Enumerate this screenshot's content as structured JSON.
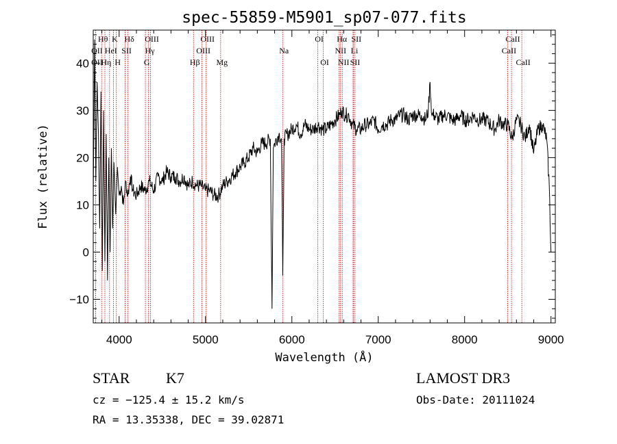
{
  "chart_data": {
    "type": "line",
    "title": "spec-55859-M5901_sp07-077.fits",
    "xlabel": "Wavelength (Å)",
    "ylabel": "Flux (relative)",
    "xlim": [
      3700,
      9050
    ],
    "ylim": [
      -15,
      47
    ],
    "xticks": [
      4000,
      5000,
      6000,
      7000,
      8000,
      9000
    ],
    "yticks": [
      -10,
      0,
      10,
      20,
      30,
      40
    ],
    "series": [
      {
        "name": "spectrum",
        "x": [
          3700,
          3715,
          3730,
          3745,
          3760,
          3775,
          3790,
          3805,
          3820,
          3835,
          3850,
          3865,
          3880,
          3895,
          3910,
          3925,
          3940,
          3960,
          3980,
          4000,
          4025,
          4050,
          4075,
          4100,
          4130,
          4160,
          4200,
          4250,
          4300,
          4350,
          4400,
          4450,
          4500,
          4550,
          4600,
          4650,
          4700,
          4750,
          4800,
          4850,
          4900,
          4950,
          5000,
          5050,
          5100,
          5150,
          5200,
          5250,
          5300,
          5350,
          5400,
          5450,
          5500,
          5550,
          5600,
          5650,
          5700,
          5750,
          5770,
          5785,
          5800,
          5850,
          5880,
          5895,
          5910,
          5950,
          6000,
          6050,
          6100,
          6150,
          6200,
          6250,
          6300,
          6350,
          6400,
          6450,
          6500,
          6550,
          6580,
          6620,
          6660,
          6700,
          6750,
          6800,
          6850,
          6900,
          6950,
          7000,
          7050,
          7100,
          7150,
          7200,
          7250,
          7300,
          7350,
          7400,
          7450,
          7500,
          7550,
          7580,
          7600,
          7620,
          7650,
          7700,
          7750,
          7800,
          7850,
          7900,
          7950,
          8000,
          8050,
          8100,
          8150,
          8200,
          8250,
          8300,
          8350,
          8400,
          8450,
          8500,
          8550,
          8600,
          8650,
          8700,
          8750,
          8800,
          8850,
          8900,
          8950,
          8980,
          9000
        ],
        "y": [
          10,
          45,
          15,
          36,
          25,
          5,
          34,
          -4,
          30,
          -2,
          25,
          -6,
          20,
          0,
          22,
          5,
          19,
          8,
          18,
          12,
          14,
          10,
          15,
          12,
          16,
          13,
          12,
          14,
          13,
          15,
          13,
          16,
          15,
          17,
          16,
          16,
          15,
          16,
          14,
          15,
          14,
          14,
          13,
          13,
          12,
          12,
          14,
          15,
          16,
          17,
          18,
          19,
          20,
          22,
          21,
          23,
          23,
          24,
          -12,
          22,
          23,
          25,
          24,
          -5,
          24,
          25,
          26,
          27,
          25,
          27,
          26,
          26,
          27,
          26,
          26,
          27,
          28,
          29,
          30,
          29,
          29,
          27,
          26,
          26,
          27,
          27,
          28,
          26,
          27,
          27,
          28,
          28,
          29,
          29,
          28,
          29,
          29,
          29,
          28,
          30,
          36,
          29,
          29,
          28,
          29,
          29,
          28,
          28,
          29,
          28,
          28,
          29,
          28,
          28,
          28,
          27,
          26,
          28,
          27,
          27,
          24,
          28,
          27,
          24,
          27,
          21,
          26,
          27,
          24,
          14,
          0
        ]
      }
    ],
    "emission_lines": [
      {
        "label": "Hθ",
        "x": 3797,
        "row": 1
      },
      {
        "label": "K",
        "x": 3934,
        "row": 1
      },
      {
        "label": "Hδ",
        "x": 4102,
        "row": 1
      },
      {
        "label": "OIII",
        "x": 4363,
        "row": 1
      },
      {
        "label": "OIII",
        "x": 5007,
        "row": 1
      },
      {
        "label": "OI",
        "x": 6300,
        "row": 1
      },
      {
        "label": "Hα",
        "x": 6563,
        "row": 1
      },
      {
        "label": "SII",
        "x": 6731,
        "row": 1
      },
      {
        "label": "CaII",
        "x": 8542,
        "row": 1
      },
      {
        "label": "OII",
        "x": 3727,
        "row": 2
      },
      {
        "label": "HeI",
        "x": 3889,
        "row": 2
      },
      {
        "label": "SII",
        "x": 4070,
        "row": 2
      },
      {
        "label": "Hγ",
        "x": 4340,
        "row": 2
      },
      {
        "label": "OIII",
        "x": 4959,
        "row": 2
      },
      {
        "label": "Na",
        "x": 5893,
        "row": 2
      },
      {
        "label": "NII",
        "x": 6548,
        "row": 2
      },
      {
        "label": "Li",
        "x": 6708,
        "row": 2
      },
      {
        "label": "CaII",
        "x": 8498,
        "row": 2
      },
      {
        "label": "OII",
        "x": 3727,
        "row": 3
      },
      {
        "label": "Hη",
        "x": 3835,
        "row": 3
      },
      {
        "label": "H",
        "x": 3968,
        "row": 3
      },
      {
        "label": "G",
        "x": 4304,
        "row": 3
      },
      {
        "label": "Hβ",
        "x": 4861,
        "row": 3
      },
      {
        "label": "Mg",
        "x": 5175,
        "row": 3
      },
      {
        "label": "OI",
        "x": 6364,
        "row": 3
      },
      {
        "label": "NII",
        "x": 6583,
        "row": 3
      },
      {
        "label": "SII",
        "x": 6716,
        "row": 3
      },
      {
        "label": "CaII",
        "x": 8662,
        "row": 3
      }
    ],
    "line_color": "#000000",
    "marker_color": "#cc0000",
    "grid": false,
    "legend": "none"
  },
  "info": {
    "class_label": "STAR",
    "subclass_label": "K7",
    "survey": "LAMOST DR3",
    "cz": "cz = −125.4 ± 15.2 km/s",
    "obs_date": "Obs-Date: 20111024",
    "coords": "RA =  13.35338, DEC =  39.02871"
  }
}
